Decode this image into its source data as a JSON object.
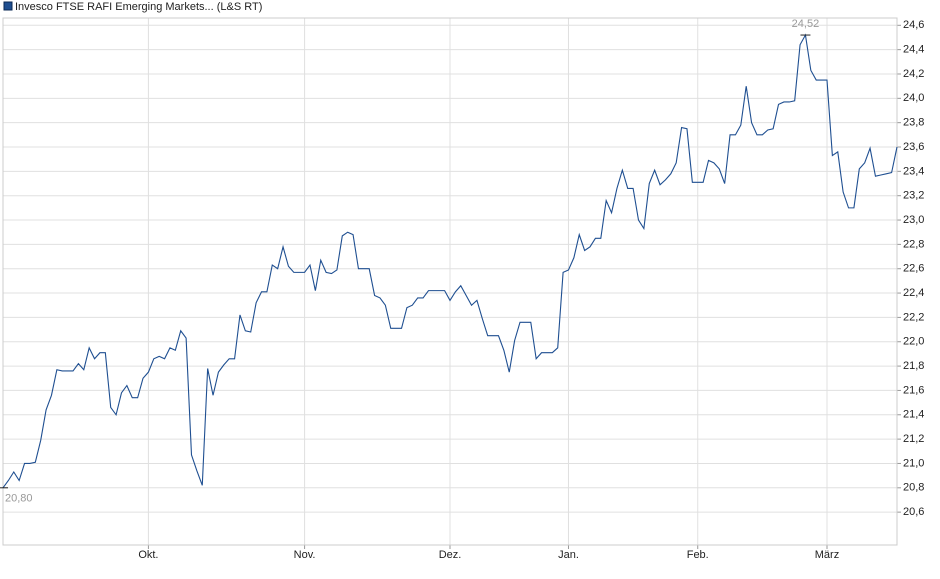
{
  "chart_data": {
    "type": "line",
    "categories": [
      null,
      null,
      null,
      null,
      null,
      null,
      null,
      null,
      null,
      null,
      null,
      null,
      null,
      null,
      null,
      null,
      null,
      null,
      null,
      null,
      null,
      null,
      null,
      null,
      null,
      null,
      null,
      "Okt.",
      null,
      null,
      null,
      null,
      null,
      null,
      null,
      null,
      null,
      null,
      null,
      null,
      null,
      null,
      null,
      null,
      null,
      null,
      null,
      null,
      null,
      null,
      null,
      null,
      null,
      null,
      null,
      null,
      "Nov.",
      null,
      null,
      null,
      null,
      null,
      null,
      null,
      null,
      null,
      null,
      null,
      null,
      null,
      null,
      null,
      null,
      null,
      null,
      null,
      null,
      null,
      null,
      null,
      null,
      null,
      null,
      "Dez.",
      null,
      null,
      null,
      null,
      null,
      null,
      null,
      null,
      null,
      null,
      null,
      null,
      null,
      null,
      null,
      null,
      null,
      null,
      null,
      null,
      null,
      "Jan.",
      null,
      null,
      null,
      null,
      null,
      null,
      null,
      null,
      null,
      null,
      null,
      null,
      null,
      null,
      null,
      null,
      null,
      null,
      null,
      null,
      null,
      null,
      null,
      "Feb.",
      null,
      null,
      null,
      null,
      null,
      null,
      null,
      null,
      null,
      null,
      null,
      null,
      null,
      null,
      null,
      null,
      null,
      null,
      null,
      null,
      null,
      null,
      null,
      "März",
      null,
      null,
      null,
      null,
      null,
      null,
      null,
      null,
      null,
      null,
      null,
      null,
      null
    ],
    "series": [
      {
        "name": "Invesco FTSE RAFI Emerging Markets... (L&S RT)",
        "color": "#1f4f91",
        "values": [
          20.8,
          20.86,
          20.93,
          20.86,
          21.0,
          21.0,
          21.01,
          21.19,
          21.44,
          21.56,
          21.77,
          21.76,
          21.76,
          21.76,
          21.82,
          21.77,
          21.95,
          21.86,
          21.91,
          21.91,
          21.46,
          21.4,
          21.58,
          21.64,
          21.54,
          21.54,
          21.7,
          21.75,
          21.86,
          21.88,
          21.86,
          21.95,
          21.93,
          22.09,
          22.03,
          21.07,
          20.94,
          20.82,
          21.78,
          21.56,
          21.75,
          21.81,
          21.86,
          21.86,
          22.22,
          22.09,
          22.08,
          22.32,
          22.41,
          22.41,
          22.63,
          22.6,
          22.78,
          22.62,
          22.57,
          22.57,
          22.57,
          22.63,
          22.42,
          22.67,
          22.57,
          22.56,
          22.59,
          22.87,
          22.9,
          22.88,
          22.6,
          22.6,
          22.6,
          22.38,
          22.36,
          22.3,
          22.11,
          22.11,
          22.11,
          22.28,
          22.3,
          22.36,
          22.36,
          22.42,
          22.42,
          22.42,
          22.42,
          22.34,
          22.41,
          22.46,
          22.38,
          22.3,
          22.34,
          22.19,
          22.05,
          22.05,
          22.05,
          21.93,
          21.75,
          22.01,
          22.16,
          22.16,
          22.16,
          21.86,
          21.91,
          21.91,
          21.91,
          21.95,
          22.57,
          22.59,
          22.69,
          22.88,
          22.75,
          22.78,
          22.85,
          22.85,
          23.16,
          23.06,
          23.26,
          23.41,
          23.26,
          23.26,
          23.0,
          22.93,
          23.3,
          23.41,
          23.29,
          23.33,
          23.38,
          23.47,
          23.76,
          23.75,
          23.31,
          23.31,
          23.31,
          23.49,
          23.47,
          23.42,
          23.3,
          23.7,
          23.7,
          23.78,
          24.1,
          23.8,
          23.7,
          23.7,
          23.74,
          23.75,
          23.95,
          23.97,
          23.97,
          23.98,
          24.44,
          24.52,
          24.23,
          24.15,
          24.15,
          24.15,
          23.53,
          23.56,
          23.23,
          23.1,
          23.1,
          23.42,
          23.47,
          23.59,
          23.36,
          23.37,
          23.38,
          23.39,
          23.6
        ],
        "value_labels": [
          "20,80",
          null,
          null,
          null,
          null,
          null,
          null,
          null,
          null,
          null,
          null,
          null,
          null,
          null,
          null,
          null,
          null,
          null,
          null,
          null,
          null,
          null,
          null,
          null,
          null,
          null,
          null,
          null,
          null,
          null,
          null,
          null,
          null,
          null,
          null,
          null,
          null,
          null,
          null,
          null,
          null,
          null,
          null,
          null,
          null,
          null,
          null,
          null,
          null,
          null,
          null,
          null,
          null,
          null,
          null,
          null,
          null,
          null,
          null,
          null,
          null,
          null,
          null,
          null,
          null,
          null,
          null,
          null,
          null,
          null,
          null,
          null,
          null,
          null,
          null,
          null,
          null,
          null,
          null,
          null,
          null,
          null,
          null,
          null,
          null,
          null,
          null,
          null,
          null,
          null,
          null,
          null,
          null,
          null,
          null,
          null,
          null,
          null,
          null,
          null,
          null,
          null,
          null,
          null,
          null,
          null,
          null,
          null,
          null,
          null,
          null,
          null,
          null,
          null,
          null,
          null,
          null,
          null,
          null,
          null,
          null,
          null,
          null,
          null,
          null,
          null,
          null,
          null,
          null,
          null,
          null,
          null,
          null,
          null,
          null,
          null,
          null,
          null,
          null,
          null,
          null,
          null,
          null,
          null,
          null,
          null,
          null,
          null,
          null,
          "24,52",
          null,
          null,
          null,
          null,
          null,
          null,
          null,
          null,
          null,
          null,
          null,
          null,
          null,
          null,
          null,
          null,
          null
        ]
      }
    ],
    "ylim": [
      20.33,
      24.66
    ],
    "yticks": [
      {
        "value": 20.6,
        "label": "20,6"
      },
      {
        "value": 20.8,
        "label": "20,8"
      },
      {
        "value": 21.0,
        "label": "21,0"
      },
      {
        "value": 21.2,
        "label": "21,2"
      },
      {
        "value": 21.4,
        "label": "21,4"
      },
      {
        "value": 21.6,
        "label": "21,6"
      },
      {
        "value": 21.8,
        "label": "21,8"
      },
      {
        "value": 22.0,
        "label": "22,0"
      },
      {
        "value": 22.2,
        "label": "22,2"
      },
      {
        "value": 22.4,
        "label": "22,4"
      },
      {
        "value": 22.6,
        "label": "22,6"
      },
      {
        "value": 22.8,
        "label": "22,8"
      },
      {
        "value": 23.0,
        "label": "23,0"
      },
      {
        "value": 23.2,
        "label": "23,2"
      },
      {
        "value": 23.4,
        "label": "23,4"
      },
      {
        "value": 23.6,
        "label": "23,6"
      },
      {
        "value": 23.8,
        "label": "23,8"
      },
      {
        "value": 24.0,
        "label": "24,0"
      },
      {
        "value": 24.2,
        "label": "24,2"
      },
      {
        "value": 24.4,
        "label": "24,4"
      },
      {
        "value": 24.6,
        "label": "24,6"
      }
    ],
    "grid": true,
    "legend": "top-left"
  }
}
